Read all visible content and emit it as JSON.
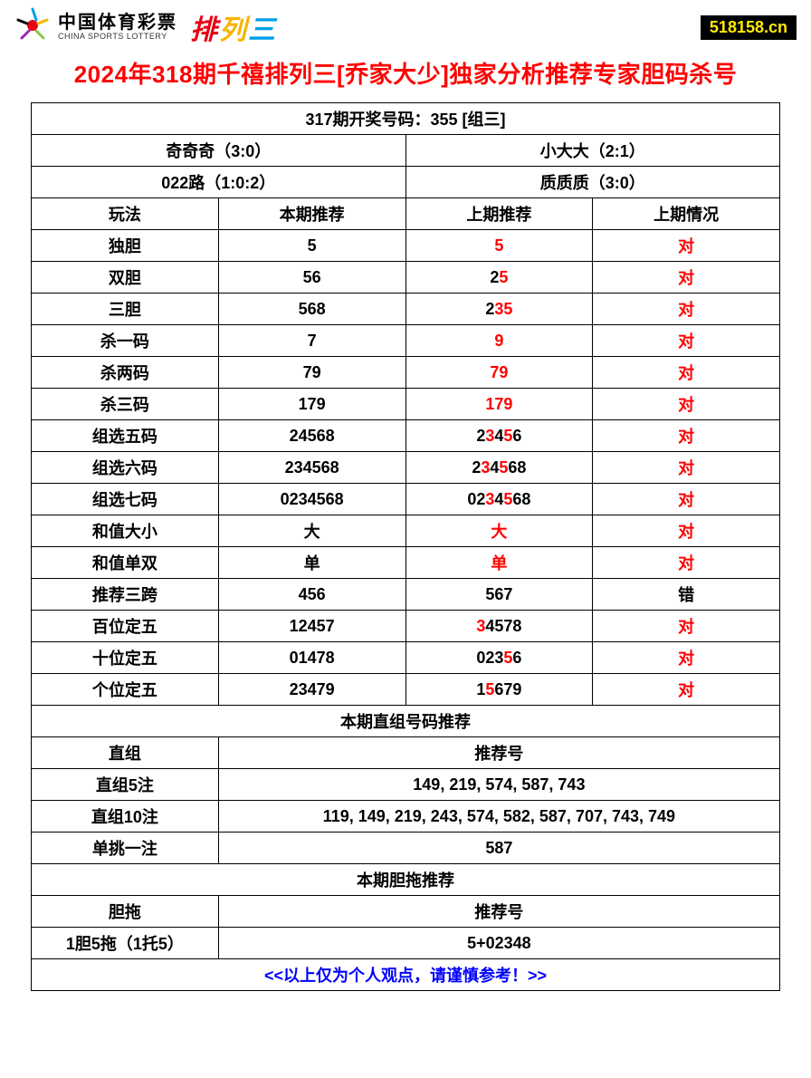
{
  "header": {
    "logo_cn": "中国体育彩票",
    "logo_en": "CHINA SPORTS LOTTERY",
    "pailie": {
      "pai": "排",
      "lie": "列",
      "san": "三"
    },
    "badge": "518158.cn"
  },
  "title": "2024年318期千禧排列三[乔家大少]独家分析推荐专家胆码杀号",
  "draw_header": "317期开奖号码：355 [组三]",
  "summary": {
    "r1c1": "奇奇奇（3:0）",
    "r1c2": "小大大（2:1）",
    "r2c1": "022路（1:0:2）",
    "r2c2": "质质质（3:0）"
  },
  "columns": {
    "c1": "玩法",
    "c2": "本期推荐",
    "c3": "上期推荐",
    "c4": "上期情况"
  },
  "rows": [
    {
      "name": "独胆",
      "cur": "5",
      "prev": [
        {
          "t": "5",
          "r": true
        }
      ],
      "status": "对",
      "status_red": true
    },
    {
      "name": "双胆",
      "cur": "56",
      "prev": [
        {
          "t": "2",
          "r": false
        },
        {
          "t": "5",
          "r": true
        }
      ],
      "status": "对",
      "status_red": true
    },
    {
      "name": "三胆",
      "cur": "568",
      "prev": [
        {
          "t": "2",
          "r": false
        },
        {
          "t": "3",
          "r": true
        },
        {
          "t": "5",
          "r": true
        }
      ],
      "status": "对",
      "status_red": true
    },
    {
      "name": "杀一码",
      "cur": "7",
      "prev": [
        {
          "t": "9",
          "r": true
        }
      ],
      "status": "对",
      "status_red": true
    },
    {
      "name": "杀两码",
      "cur": "79",
      "prev": [
        {
          "t": "7",
          "r": true
        },
        {
          "t": "9",
          "r": true
        }
      ],
      "status": "对",
      "status_red": true
    },
    {
      "name": "杀三码",
      "cur": "179",
      "prev": [
        {
          "t": "1",
          "r": true
        },
        {
          "t": "7",
          "r": true
        },
        {
          "t": "9",
          "r": true
        }
      ],
      "status": "对",
      "status_red": true
    },
    {
      "name": "组选五码",
      "cur": "24568",
      "prev": [
        {
          "t": "2",
          "r": false
        },
        {
          "t": "3",
          "r": true
        },
        {
          "t": "4",
          "r": false
        },
        {
          "t": "5",
          "r": true
        },
        {
          "t": "6",
          "r": false
        }
      ],
      "status": "对",
      "status_red": true
    },
    {
      "name": "组选六码",
      "cur": "234568",
      "prev": [
        {
          "t": "2",
          "r": false
        },
        {
          "t": "3",
          "r": true
        },
        {
          "t": "4",
          "r": false
        },
        {
          "t": "5",
          "r": true
        },
        {
          "t": "6",
          "r": false
        },
        {
          "t": "8",
          "r": false
        }
      ],
      "status": "对",
      "status_red": true
    },
    {
      "name": "组选七码",
      "cur": "0234568",
      "prev": [
        {
          "t": "0",
          "r": false
        },
        {
          "t": "2",
          "r": false
        },
        {
          "t": "3",
          "r": true
        },
        {
          "t": "4",
          "r": false
        },
        {
          "t": "5",
          "r": true
        },
        {
          "t": "6",
          "r": false
        },
        {
          "t": "8",
          "r": false
        }
      ],
      "status": "对",
      "status_red": true
    },
    {
      "name": "和值大小",
      "cur": "大",
      "prev": [
        {
          "t": "大",
          "r": true
        }
      ],
      "status": "对",
      "status_red": true
    },
    {
      "name": "和值单双",
      "cur": "单",
      "prev": [
        {
          "t": "单",
          "r": true
        }
      ],
      "status": "对",
      "status_red": true
    },
    {
      "name": "推荐三跨",
      "cur": "456",
      "prev": [
        {
          "t": "567",
          "r": false
        }
      ],
      "status": "错",
      "status_red": false
    },
    {
      "name": "百位定五",
      "cur": "12457",
      "prev": [
        {
          "t": "3",
          "r": true
        },
        {
          "t": "4",
          "r": false
        },
        {
          "t": "5",
          "r": false
        },
        {
          "t": "7",
          "r": false
        },
        {
          "t": "8",
          "r": false
        }
      ],
      "status": "对",
      "status_red": true
    },
    {
      "name": "十位定五",
      "cur": "01478",
      "prev": [
        {
          "t": "0",
          "r": false
        },
        {
          "t": "2",
          "r": false
        },
        {
          "t": "3",
          "r": false
        },
        {
          "t": "5",
          "r": true
        },
        {
          "t": "6",
          "r": false
        }
      ],
      "status": "对",
      "status_red": true
    },
    {
      "name": "个位定五",
      "cur": "23479",
      "prev": [
        {
          "t": "1",
          "r": false
        },
        {
          "t": "5",
          "r": true
        },
        {
          "t": "6",
          "r": false
        },
        {
          "t": "7",
          "r": false
        },
        {
          "t": "9",
          "r": false
        }
      ],
      "status": "对",
      "status_red": true
    }
  ],
  "section_zhizu": {
    "header": "本期直组号码推荐",
    "col_label": "直组",
    "col_rec": "推荐号",
    "rows": [
      {
        "label": "直组5注",
        "val": "149, 219, 574, 587, 743"
      },
      {
        "label": "直组10注",
        "val": "119, 149, 219, 243, 574, 582, 587, 707, 743, 749"
      },
      {
        "label": "单挑一注",
        "val": "587"
      }
    ]
  },
  "section_dantuo": {
    "header": "本期胆拖推荐",
    "col_label": "胆拖",
    "col_rec": "推荐号",
    "rows": [
      {
        "label": "1胆5拖（1托5）",
        "val": "5+02348"
      }
    ]
  },
  "footer": "<<以上仅为个人观点，请谨慎参考！>>",
  "colors": {
    "title_red": "#ff0000",
    "highlight_red": "#ff0000",
    "footer_blue": "#0000ff",
    "border": "#000000",
    "badge_bg": "#000000",
    "badge_fg": "#ffeb00"
  }
}
